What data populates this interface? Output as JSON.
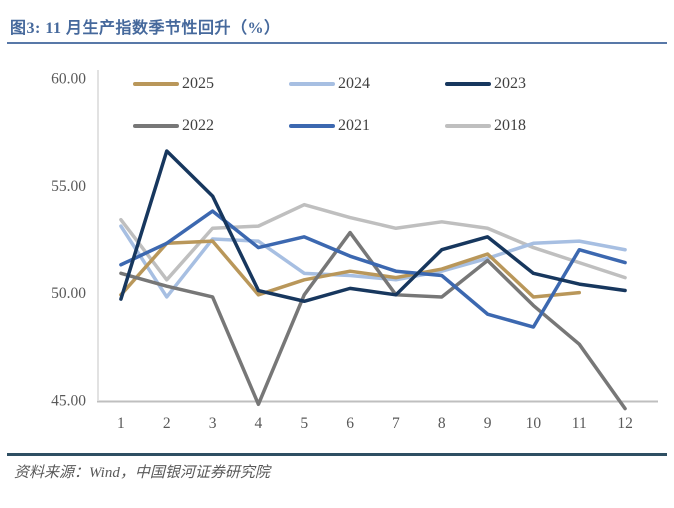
{
  "figure": {
    "title": "图3: 11 月生产指数季节性回升（%）",
    "source": "资料来源：Wind，中国银河证券研究院"
  },
  "colors": {
    "title_text": "#46699C",
    "top_rule": "#5878A8",
    "bottom_rule": "#2F4F63",
    "axis_text": "#595959",
    "legend_text": "#404040",
    "x_axis_line": "#BFBFBF",
    "y_axis_line": "#D9D9D9",
    "source_text": "#595959"
  },
  "chart_data": {
    "type": "line",
    "title": "图3: 11 月生产指数季节性回升（%）",
    "xlabel": "",
    "ylabel": "",
    "categories": [
      "1",
      "2",
      "3",
      "4",
      "5",
      "6",
      "7",
      "8",
      "9",
      "10",
      "11",
      "12"
    ],
    "yticks": [
      "60.00",
      "55.00",
      "50.00",
      "45.00"
    ],
    "ylim": [
      45,
      60
    ],
    "grid": false,
    "legend_position": "top",
    "series": [
      {
        "name": "2025",
        "color": "#B9975A",
        "values": [
          49.9,
          52.3,
          52.4,
          49.9,
          50.6,
          51.0,
          50.7,
          51.1,
          51.8,
          49.8,
          50.0,
          null
        ]
      },
      {
        "name": "2024",
        "color": "#A7BFE2",
        "values": [
          53.1,
          49.8,
          52.5,
          52.4,
          50.9,
          50.8,
          50.6,
          51.0,
          51.6,
          52.3,
          52.4,
          52.0
        ]
      },
      {
        "name": "2023",
        "color": "#17375E",
        "values": [
          49.7,
          56.6,
          54.5,
          50.1,
          49.6,
          50.2,
          49.9,
          52.0,
          52.6,
          50.9,
          50.4,
          50.1
        ]
      },
      {
        "name": "2022",
        "color": "#777777",
        "values": [
          50.9,
          50.3,
          49.8,
          44.8,
          49.9,
          52.8,
          49.9,
          49.8,
          51.5,
          49.4,
          47.6,
          44.6
        ]
      },
      {
        "name": "2021",
        "color": "#3C68B0",
        "values": [
          51.3,
          52.3,
          53.8,
          52.1,
          52.6,
          51.7,
          51.0,
          50.8,
          49.0,
          48.4,
          52.0,
          51.4
        ]
      },
      {
        "name": "2018",
        "color": "#BFBFBF",
        "values": [
          53.4,
          50.6,
          53.0,
          53.1,
          54.1,
          53.5,
          53.0,
          53.3,
          53.0,
          52.1,
          51.4,
          50.7
        ]
      }
    ],
    "draw_order": [
      "2018",
      "2024",
      "2025",
      "2022",
      "2021",
      "2023"
    ]
  }
}
